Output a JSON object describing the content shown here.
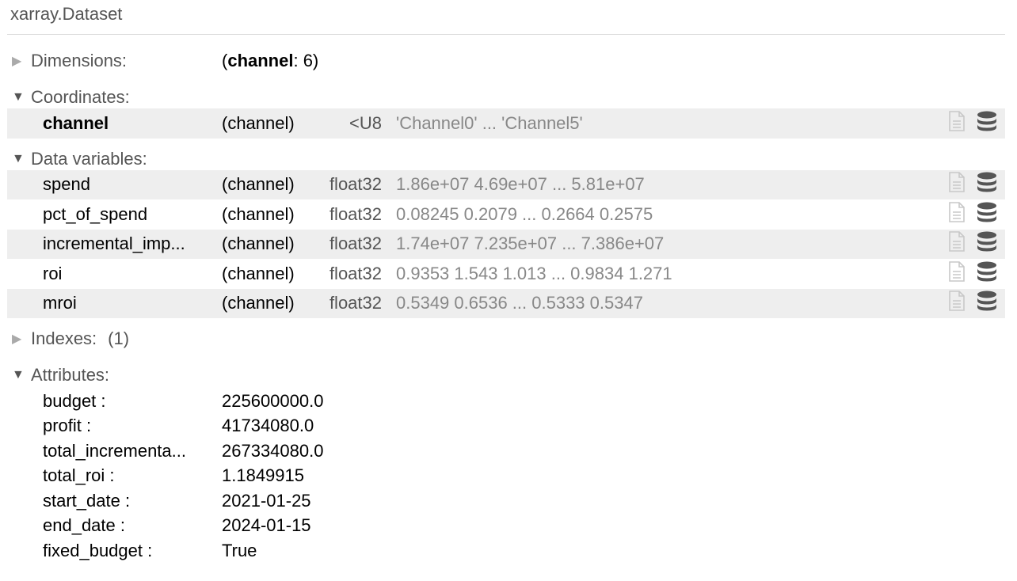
{
  "title": "xarray.Dataset",
  "dimensions": {
    "label": "Dimensions:",
    "open_paren": "(",
    "dim_name": "channel",
    "dim_rest": ": 6)"
  },
  "coordinates": {
    "label": "Coordinates:",
    "rows": [
      {
        "name": "channel",
        "dims": "(channel)",
        "dtype": "<U8",
        "preview": "'Channel0' ... 'Channel5'"
      }
    ]
  },
  "data_variables": {
    "label": "Data variables:",
    "rows": [
      {
        "name": "spend",
        "dims": "(channel)",
        "dtype": "float32",
        "preview": "1.86e+07 4.69e+07 ... 5.81e+07"
      },
      {
        "name": "pct_of_spend",
        "dims": "(channel)",
        "dtype": "float32",
        "preview": "0.08245 0.2079 ... 0.2664 0.2575"
      },
      {
        "name": "incremental_imp...",
        "dims": "(channel)",
        "dtype": "float32",
        "preview": "1.74e+07 7.235e+07 ... 7.386e+07"
      },
      {
        "name": "roi",
        "dims": "(channel)",
        "dtype": "float32",
        "preview": "0.9353 1.543 1.013 ... 0.9834 1.271"
      },
      {
        "name": "mroi",
        "dims": "(channel)",
        "dtype": "float32",
        "preview": "0.5349 0.6536 ... 0.5333 0.5347"
      }
    ]
  },
  "indexes": {
    "label": "Indexes:",
    "count": "(1)"
  },
  "attributes": {
    "label": "Attributes:",
    "rows": [
      {
        "name": "budget :",
        "value": "225600000.0"
      },
      {
        "name": "profit :",
        "value": "41734080.0"
      },
      {
        "name": "total_incrementa...",
        "value": "267334080.0"
      },
      {
        "name": "total_roi :",
        "value": "1.1849915"
      },
      {
        "name": "start_date :",
        "value": "2021-01-25"
      },
      {
        "name": "end_date :",
        "value": "2024-01-15"
      },
      {
        "name": "fixed_budget :",
        "value": "True"
      }
    ]
  },
  "icons": {
    "attrs": "file-icon",
    "data": "database-icon"
  }
}
